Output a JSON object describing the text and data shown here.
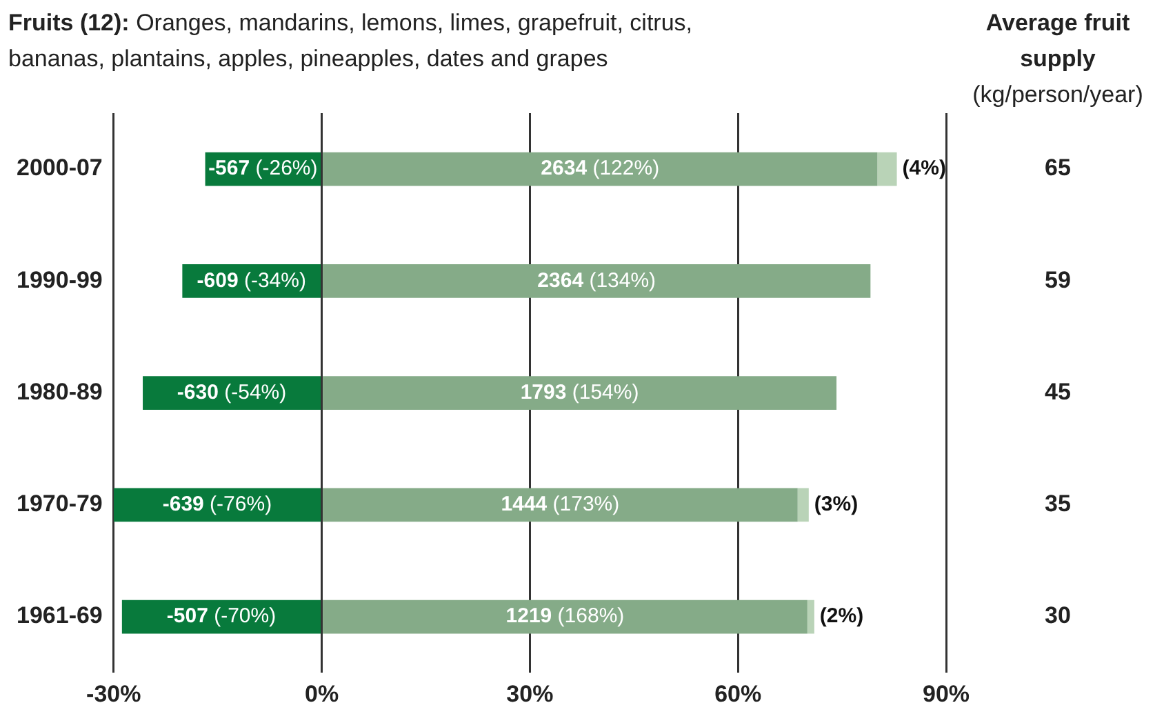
{
  "chart_data": {
    "type": "bar",
    "orientation": "horizontal",
    "stacked": true,
    "title": "Fruits (12): Oranges, mandarins, lemons, limes, grapefruit, citrus, bananas, plantains, apples, pineapples, dates and grapes",
    "categories": [
      "2000-07",
      "1990-99",
      "1980-89",
      "1970-79",
      "1961-69"
    ],
    "series": [
      {
        "color": "#087a3c",
        "values": [
          -16.8,
          -20.1,
          -25.8,
          -30,
          -28.8
        ]
      },
      {
        "color": "#85ab88",
        "values": [
          80.1,
          79.1,
          74.2,
          68.6,
          70
        ]
      },
      {
        "color": "#b9d3b7",
        "values": [
          2.8,
          null,
          null,
          1.6,
          1
        ]
      }
    ],
    "xlim": [
      -30,
      90
    ],
    "xticks": [
      {
        "value": -30,
        "label": "-30%"
      },
      {
        "value": 0,
        "label": "0%"
      },
      {
        "value": 30,
        "label": "30%"
      },
      {
        "value": 60,
        "label": "60%"
      },
      {
        "value": 90,
        "label": "90%"
      }
    ],
    "grid": "x",
    "legend": false,
    "annotations": [
      "Average fruit supply (kg/person/year)",
      "65",
      "59",
      "45",
      "35",
      "30",
      {
        "text": "-567 (-26%)",
        "x": -16.8,
        "y": "2000-07"
      },
      {
        "text": "-609 (-34%)",
        "x": -20.1,
        "y": "1990-99"
      },
      {
        "text": "-630 (-54%)",
        "x": -25.8,
        "y": "1980-89"
      },
      {
        "text": "-639 (-76%)",
        "x": -30,
        "y": "1970-79"
      },
      {
        "text": "-507 (-70%)",
        "x": -28.8,
        "y": "1961-69"
      },
      "2634 (122%)",
      "2364 (134%)",
      "1793 (154%)",
      "1444 (173%)",
      "1219 (168%)",
      {
        "text": "(4%)",
        "x": 82.9,
        "y": "2000-07"
      },
      {
        "text": "(3%)",
        "x": 70.2,
        "y": "1970-79"
      },
      {
        "text": "(2%)",
        "x": 71,
        "y": "1961-69"
      }
    ]
  }
}
